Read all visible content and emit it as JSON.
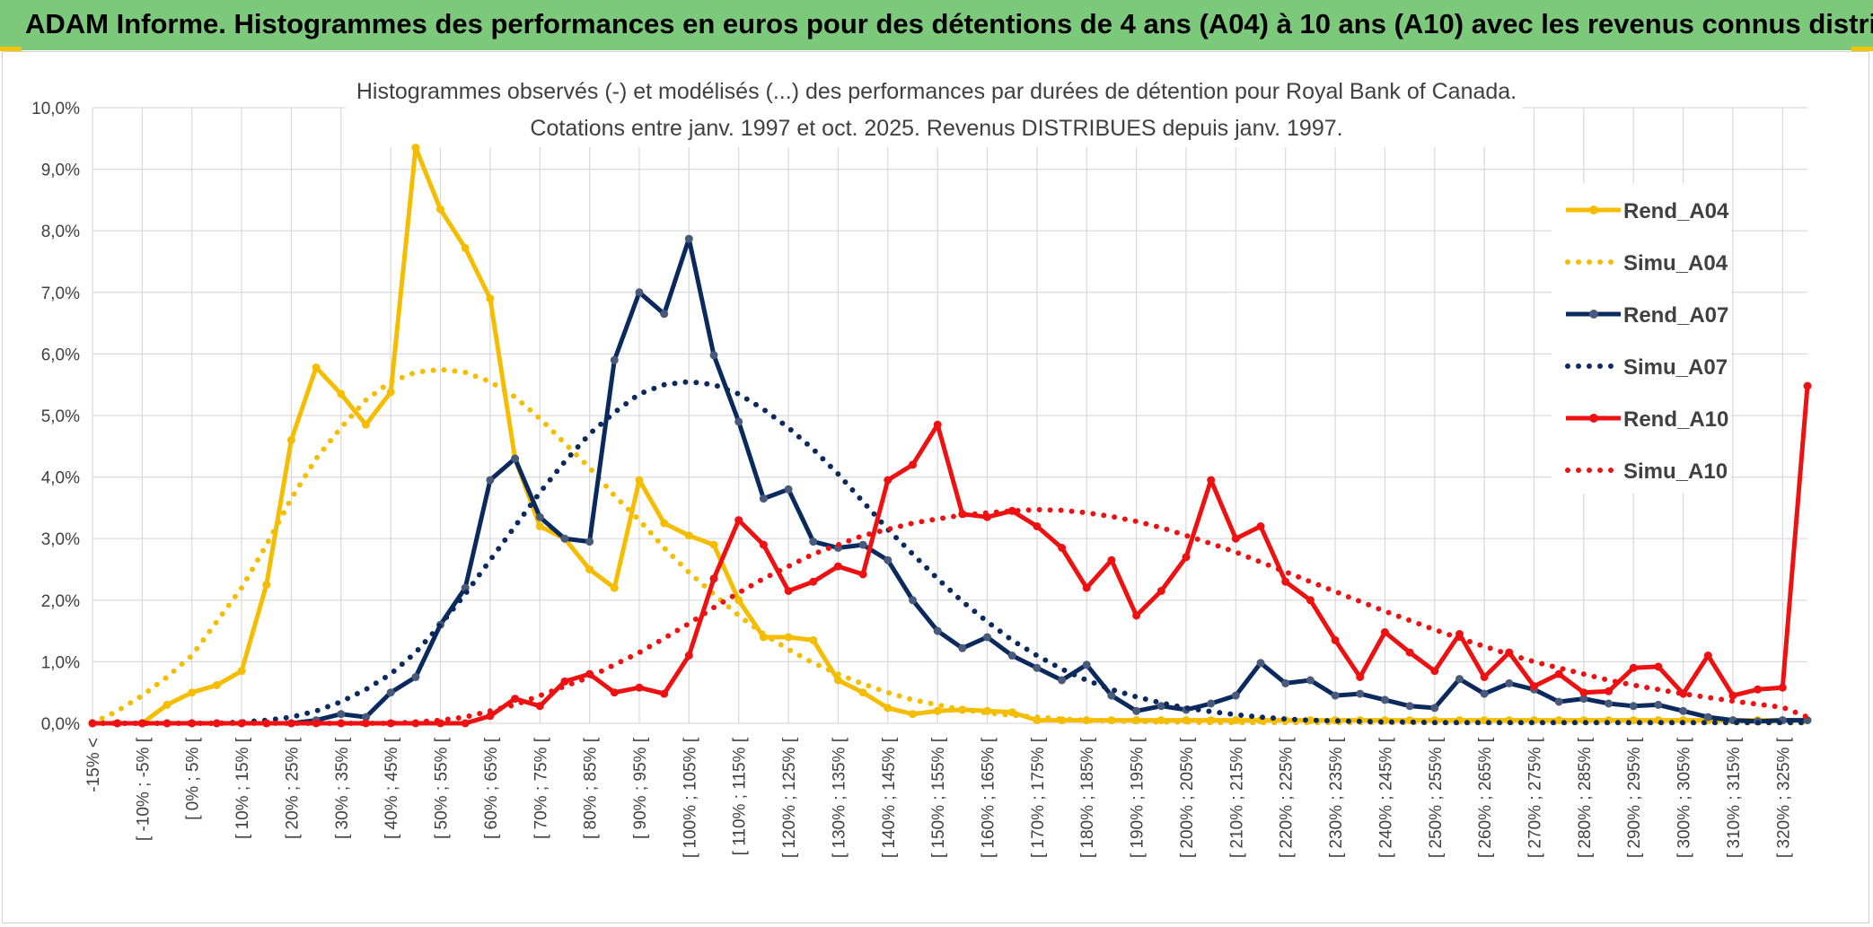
{
  "banner_title": "ADAM Informe. Histogrammes des performances en euros pour des détentions de 4 ans (A04) à 10 ans (A10) avec les revenus connus distribués",
  "colors": {
    "banner": "#7dc97b",
    "A04": "#f5bd00",
    "A07": "#0a2a5e",
    "A10": "#ee1111",
    "grid": "#d9d9d9",
    "text": "#404040"
  },
  "chart_data": {
    "type": "line",
    "title_lines": [
      "Histogrammes observés (-) et modélisés (...) des performances par durées de détention pour Royal Bank of Canada.",
      "Cotations entre janv. 1997 et oct. 2025. Revenus DISTRIBUES depuis janv. 1997."
    ],
    "ylim": [
      0,
      10
    ],
    "y_ticks": [
      "0,0%",
      "1,0%",
      "2,0%",
      "3,0%",
      "4,0%",
      "5,0%",
      "6,0%",
      "7,0%",
      "8,0%",
      "9,0%",
      "10,0%"
    ],
    "grid": true,
    "legend_position": "right",
    "x_labels": [
      "-15% <",
      "[ -10% ; -5% [",
      "[ 0% ; 5% [",
      "[ 10% ; 15% [",
      "[ 20% ; 25% [",
      "[ 30% ; 35% [",
      "[ 40% ; 45% [",
      "[ 50% ; 55% [",
      "[ 60% ; 65% [",
      "[ 70% ; 75% [",
      "[ 80% ; 85% [",
      "[ 90% ; 95% [",
      "[ 100% ; 105% [",
      "[ 110% ; 115% [",
      "[ 120% ; 125% [",
      "[ 130% ; 135% [",
      "[ 140% ; 145% [",
      "[ 150% ; 155% [",
      "[ 160% ; 165% [",
      "[ 170% ; 175% [",
      "[ 180% ; 185% [",
      "[ 190% ; 195% [",
      "[ 200% ; 205% [",
      "[ 210% ; 215% [",
      "[ 220% ; 225% [",
      "[ 230% ; 235% [",
      "[ 240% ; 245% [",
      "[ 250% ; 255% [",
      "[ 260% ; 265% [",
      "[ 270% ; 275% [",
      "[ 280% ; 285% [",
      "[ 290% ; 295% [",
      "[ 300% ; 305% [",
      "[ 310% ; 315% [",
      "[ 320% ; 325% ["
    ],
    "x_count": 70,
    "series": [
      {
        "name": "Rend_A04",
        "style": "solid",
        "color": "#f5bd00",
        "values": [
          0,
          0,
          0,
          0.3,
          0.5,
          0.62,
          0.85,
          2.25,
          4.6,
          5.78,
          5.35,
          4.85,
          5.38,
          9.35,
          8.35,
          7.72,
          6.9,
          4.3,
          3.2,
          3.0,
          2.5,
          2.2,
          3.95,
          3.25,
          3.05,
          2.9,
          2.0,
          1.4,
          1.4,
          1.35,
          0.7,
          0.5,
          0.25,
          0.15,
          0.2,
          0.22,
          0.2,
          0.18,
          0.05,
          0.05,
          0.05,
          0.05,
          0.05,
          0.05,
          0.05,
          0.05,
          0.05,
          0.05,
          0.05,
          0.05,
          0.05,
          0.05,
          0.05,
          0.05,
          0.05,
          0.05,
          0.05,
          0.05,
          0.05,
          0.05,
          0.05,
          0.05,
          0.05,
          0.05,
          0.05,
          0.05,
          0.05,
          0.05,
          0.05,
          0.05
        ]
      },
      {
        "name": "Simu_A04",
        "style": "dotted",
        "color": "#f5bd00",
        "values": [
          0,
          0.2,
          0.45,
          0.75,
          1.1,
          1.65,
          2.2,
          2.9,
          3.65,
          4.3,
          4.8,
          5.25,
          5.55,
          5.7,
          5.75,
          5.7,
          5.55,
          5.3,
          4.95,
          4.55,
          4.15,
          3.7,
          3.3,
          2.85,
          2.45,
          2.1,
          1.75,
          1.45,
          1.2,
          0.98,
          0.8,
          0.64,
          0.5,
          0.38,
          0.3,
          0.22,
          0.17,
          0.13,
          0.1,
          0.07,
          0.05,
          0.04,
          0.03,
          0.02,
          0.02,
          0.01,
          0.01,
          0.01,
          0.01,
          0.01,
          0.01,
          0.01,
          0.01,
          0.01,
          0.01,
          0.01,
          0.01,
          0.01,
          0.01,
          0.01,
          0.01,
          0.01,
          0.01,
          0.01,
          0.01,
          0.01,
          0.01,
          0.01,
          0.01,
          0.01
        ]
      },
      {
        "name": "Rend_A07",
        "style": "solid",
        "color": "#0a2a5e",
        "values": [
          0,
          0,
          0,
          0,
          0,
          0,
          0,
          0,
          0,
          0.05,
          0.15,
          0.1,
          0.5,
          0.75,
          1.6,
          2.2,
          3.95,
          4.3,
          3.35,
          3.0,
          2.95,
          5.9,
          7.0,
          6.65,
          7.87,
          5.98,
          4.9,
          3.65,
          3.8,
          2.95,
          2.85,
          2.9,
          2.65,
          2.0,
          1.5,
          1.22,
          1.4,
          1.1,
          0.9,
          0.7,
          0.95,
          0.45,
          0.2,
          0.28,
          0.22,
          0.32,
          0.45,
          0.98,
          0.65,
          0.7,
          0.45,
          0.48,
          0.38,
          0.28,
          0.25,
          0.72,
          0.48,
          0.65,
          0.55,
          0.35,
          0.4,
          0.32,
          0.28,
          0.3,
          0.2,
          0.1,
          0.05,
          0.03,
          0.05,
          0.05
        ]
      },
      {
        "name": "Simu_A07",
        "style": "dotted",
        "color": "#0a2a5e",
        "values": [
          0,
          0,
          0,
          0,
          0,
          0,
          0.02,
          0.05,
          0.1,
          0.2,
          0.35,
          0.55,
          0.8,
          1.15,
          1.6,
          2.1,
          2.65,
          3.2,
          3.75,
          4.25,
          4.7,
          5.05,
          5.35,
          5.5,
          5.55,
          5.5,
          5.35,
          5.1,
          4.8,
          4.45,
          4.05,
          3.6,
          3.15,
          2.75,
          2.35,
          1.98,
          1.65,
          1.35,
          1.1,
          0.88,
          0.7,
          0.55,
          0.43,
          0.33,
          0.25,
          0.19,
          0.14,
          0.1,
          0.07,
          0.05,
          0.04,
          0.03,
          0.02,
          0.02,
          0.01,
          0.01,
          0.01,
          0.01,
          0.01,
          0.01,
          0.01,
          0.01,
          0.01,
          0.01,
          0.01,
          0.01,
          0.01,
          0.01,
          0.01,
          0.01
        ]
      },
      {
        "name": "Rend_A10",
        "style": "solid",
        "color": "#ee1111",
        "values": [
          0,
          0,
          0,
          0,
          0,
          0,
          0,
          0,
          0,
          0,
          0,
          0,
          0,
          0,
          0,
          0,
          0.12,
          0.4,
          0.28,
          0.68,
          0.8,
          0.5,
          0.58,
          0.48,
          1.1,
          2.35,
          3.3,
          2.9,
          2.15,
          2.3,
          2.55,
          2.42,
          3.95,
          4.2,
          4.85,
          3.4,
          3.35,
          3.45,
          3.2,
          2.85,
          2.2,
          2.65,
          1.75,
          2.15,
          2.7,
          3.95,
          3.0,
          3.2,
          2.3,
          2.0,
          1.35,
          0.75,
          1.48,
          1.15,
          0.85,
          1.45,
          0.75,
          1.15,
          0.6,
          0.8,
          0.5,
          0.52,
          0.9,
          0.92,
          0.48,
          1.1,
          0.45,
          0.55,
          0.58,
          5.48
        ]
      },
      {
        "name": "Simu_A10",
        "style": "dotted",
        "color": "#ee1111",
        "values": [
          0,
          0,
          0,
          0,
          0,
          0,
          0,
          0,
          0,
          0,
          0,
          0,
          0,
          0.02,
          0.05,
          0.1,
          0.2,
          0.3,
          0.45,
          0.6,
          0.75,
          0.95,
          1.15,
          1.38,
          1.62,
          1.88,
          2.12,
          2.35,
          2.55,
          2.75,
          2.9,
          3.05,
          3.15,
          3.25,
          3.32,
          3.38,
          3.42,
          3.45,
          3.47,
          3.46,
          3.42,
          3.36,
          3.28,
          3.18,
          3.05,
          2.92,
          2.78,
          2.62,
          2.46,
          2.3,
          2.14,
          1.98,
          1.82,
          1.67,
          1.52,
          1.38,
          1.25,
          1.12,
          1.0,
          0.9,
          0.8,
          0.7,
          0.62,
          0.55,
          0.48,
          0.42,
          0.36,
          0.31,
          0.26,
          0.1
        ]
      }
    ]
  }
}
